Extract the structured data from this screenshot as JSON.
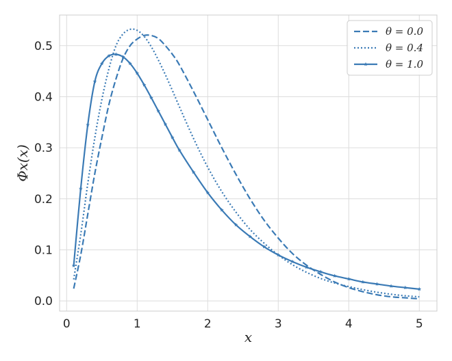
{
  "chart_data": {
    "type": "line",
    "title": "",
    "xlabel": "x",
    "ylabel": "Φx(x)",
    "xlim": [
      -0.1,
      5.25
    ],
    "ylim": [
      -0.02,
      0.56
    ],
    "xticks": [
      0,
      1,
      2,
      3,
      4,
      5
    ],
    "yticks": [
      0.0,
      0.1,
      0.2,
      0.3,
      0.4,
      0.5
    ],
    "xtick_labels": [
      "0",
      "1",
      "2",
      "3",
      "4",
      "5"
    ],
    "ytick_labels": [
      "0.0",
      "0.1",
      "0.2",
      "0.3",
      "0.4",
      "0.5"
    ],
    "grid": true,
    "legend_position": "top-right",
    "line_color": "#3a7ab5",
    "series": [
      {
        "name": "θ = 0.0",
        "style": "dashed",
        "x": [
          0.1,
          0.2,
          0.3,
          0.4,
          0.5,
          0.6,
          0.7,
          0.8,
          0.9,
          1.0,
          1.1,
          1.2,
          1.3,
          1.4,
          1.5,
          1.6,
          1.8,
          2.0,
          2.2,
          2.4,
          2.6,
          2.8,
          3.0,
          3.2,
          3.4,
          3.6,
          3.8,
          4.0,
          4.2,
          4.4,
          4.6,
          4.8,
          5.0
        ],
        "y": [
          0.024,
          0.09,
          0.17,
          0.25,
          0.32,
          0.385,
          0.435,
          0.475,
          0.5,
          0.513,
          0.52,
          0.52,
          0.514,
          0.5,
          0.483,
          0.462,
          0.41,
          0.355,
          0.3,
          0.248,
          0.2,
          0.158,
          0.123,
          0.093,
          0.07,
          0.052,
          0.037,
          0.026,
          0.018,
          0.012,
          0.008,
          0.006,
          0.004
        ]
      },
      {
        "name": "θ = 0.4",
        "style": "dotted",
        "x": [
          0.1,
          0.2,
          0.3,
          0.4,
          0.5,
          0.6,
          0.7,
          0.8,
          0.9,
          1.0,
          1.1,
          1.2,
          1.3,
          1.4,
          1.5,
          1.6,
          1.8,
          2.0,
          2.2,
          2.4,
          2.6,
          2.8,
          3.0,
          3.2,
          3.4,
          3.6,
          3.8,
          4.0,
          4.2,
          4.4,
          4.6,
          4.8,
          5.0
        ],
        "y": [
          0.042,
          0.13,
          0.23,
          0.32,
          0.395,
          0.455,
          0.5,
          0.523,
          0.532,
          0.53,
          0.518,
          0.498,
          0.472,
          0.443,
          0.412,
          0.38,
          0.318,
          0.262,
          0.214,
          0.174,
          0.14,
          0.113,
          0.09,
          0.071,
          0.056,
          0.044,
          0.035,
          0.028,
          0.022,
          0.017,
          0.013,
          0.01,
          0.008
        ]
      },
      {
        "name": "θ = 1.0",
        "style": "solid-star",
        "x": [
          0.1,
          0.2,
          0.3,
          0.4,
          0.5,
          0.6,
          0.7,
          0.8,
          0.9,
          1.0,
          1.1,
          1.2,
          1.3,
          1.4,
          1.5,
          1.6,
          1.8,
          2.0,
          2.2,
          2.4,
          2.6,
          2.8,
          3.0,
          3.2,
          3.4,
          3.6,
          3.8,
          4.0,
          4.2,
          4.4,
          4.6,
          4.8,
          5.0
        ],
        "y": [
          0.069,
          0.22,
          0.345,
          0.43,
          0.465,
          0.48,
          0.483,
          0.478,
          0.465,
          0.446,
          0.423,
          0.398,
          0.372,
          0.346,
          0.32,
          0.295,
          0.252,
          0.212,
          0.178,
          0.149,
          0.126,
          0.106,
          0.09,
          0.077,
          0.066,
          0.057,
          0.049,
          0.043,
          0.037,
          0.033,
          0.029,
          0.026,
          0.023
        ]
      }
    ]
  }
}
